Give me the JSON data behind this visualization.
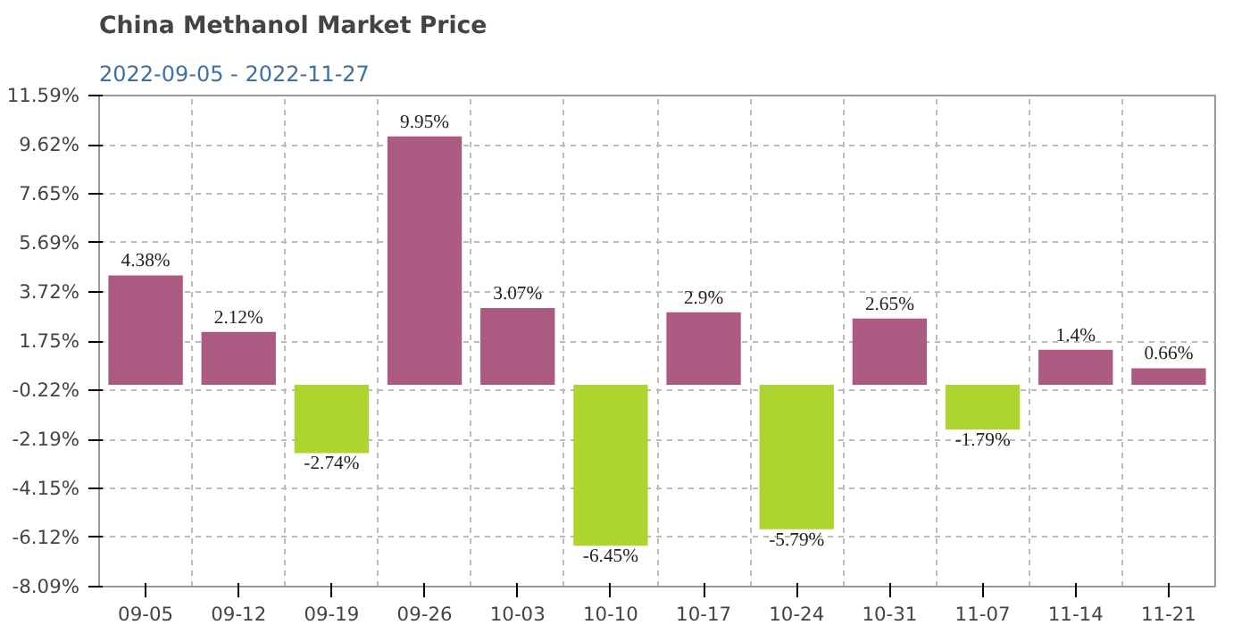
{
  "chart_data": {
    "type": "bar",
    "title": "China Methanol Market Price",
    "subtitle": "2022-09-05 - 2022-11-27",
    "categories": [
      "09-05",
      "09-12",
      "09-19",
      "09-26",
      "10-03",
      "10-10",
      "10-17",
      "10-24",
      "10-31",
      "11-07",
      "11-14",
      "11-21"
    ],
    "values": [
      4.38,
      2.12,
      -2.74,
      9.95,
      3.07,
      -6.45,
      2.9,
      -5.79,
      2.65,
      -1.79,
      1.4,
      0.66
    ],
    "colors": [
      "#ab5a82",
      "#ab5a82",
      "#add42f",
      "#ab5a82",
      "#ab5a82",
      "#add42f",
      "#ab5a82",
      "#add42f",
      "#ab5a82",
      "#add42f",
      "#ab5a82",
      "#ab5a82"
    ],
    "value_labels": [
      "4.38%",
      "2.12%",
      "-2.74%",
      "9.95%",
      "3.07%",
      "-6.45%",
      "2.9%",
      "-5.79%",
      "2.65%",
      "-1.79%",
      "1.4%",
      "0.66%"
    ],
    "ylim": [
      -8.09,
      11.59
    ],
    "yticks": [
      {
        "value": 11.59,
        "label": "11.59%"
      },
      {
        "value": 9.62,
        "label": "9.62%"
      },
      {
        "value": 7.65,
        "label": "7.65%"
      },
      {
        "value": 5.69,
        "label": "5.69%"
      },
      {
        "value": 3.72,
        "label": "3.72%"
      },
      {
        "value": 1.75,
        "label": "1.75%"
      },
      {
        "value": -0.22,
        "label": "-0.22%"
      },
      {
        "value": -2.19,
        "label": "-2.19%"
      },
      {
        "value": -4.15,
        "label": "-4.15%"
      },
      {
        "value": -6.12,
        "label": "-6.12%"
      },
      {
        "value": -8.09,
        "label": "-8.09%"
      }
    ],
    "grid": true
  }
}
